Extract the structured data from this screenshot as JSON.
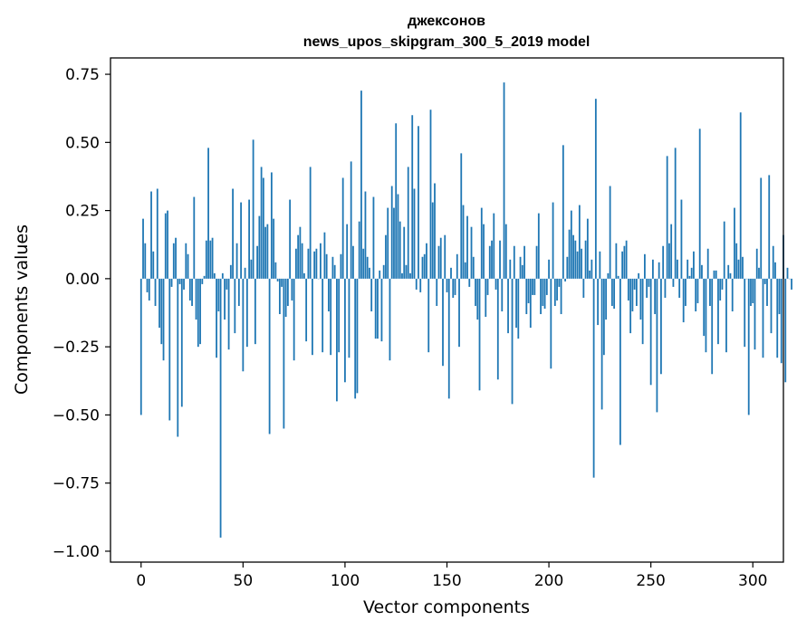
{
  "chart_data": {
    "type": "bar",
    "title_line1": "джексонов",
    "title_line2": "news_upos_skipgram_300_5_2019 model",
    "xlabel": "Vector components",
    "ylabel": "Components values",
    "xlim": [
      -15,
      315
    ],
    "ylim": [
      -1.04,
      0.81
    ],
    "x_ticks": [
      0,
      50,
      100,
      150,
      200,
      250,
      300
    ],
    "y_ticks": [
      -1.0,
      -0.75,
      -0.5,
      -0.25,
      0.0,
      0.25,
      0.5,
      0.75
    ],
    "y_tick_labels": [
      "−1.00",
      "−0.75",
      "−0.50",
      "−0.25",
      "0.00",
      "0.25",
      "0.50",
      "0.75"
    ],
    "bar_color": "#1f77b4",
    "grid": false,
    "values": [
      -0.5,
      0.22,
      0.13,
      -0.05,
      -0.08,
      0.32,
      0.1,
      -0.1,
      0.33,
      -0.18,
      -0.24,
      -0.3,
      0.24,
      0.25,
      -0.52,
      -0.03,
      0.13,
      0.15,
      -0.58,
      -0.02,
      -0.47,
      -0.04,
      0.13,
      0.09,
      -0.08,
      -0.1,
      0.3,
      -0.15,
      -0.25,
      -0.24,
      -0.02,
      0.01,
      0.14,
      0.48,
      0.14,
      0.15,
      0.02,
      -0.29,
      -0.12,
      -0.95,
      0.02,
      -0.15,
      -0.04,
      -0.26,
      0.05,
      0.33,
      -0.2,
      0.13,
      -0.1,
      0.28,
      -0.34,
      0.04,
      -0.25,
      0.29,
      0.07,
      0.51,
      -0.24,
      0.12,
      0.23,
      0.41,
      0.37,
      0.19,
      0.2,
      -0.57,
      0.39,
      0.22,
      0.06,
      -0.01,
      -0.13,
      -0.03,
      -0.55,
      -0.14,
      -0.1,
      0.29,
      -0.08,
      -0.3,
      0.11,
      0.16,
      0.19,
      0.13,
      0.02,
      -0.23,
      0.11,
      0.41,
      -0.28,
      0.1,
      0.11,
      0.0,
      0.13,
      -0.27,
      0.17,
      0.09,
      -0.12,
      -0.28,
      0.08,
      0.05,
      -0.45,
      -0.27,
      0.09,
      0.37,
      -0.38,
      0.2,
      -0.29,
      0.43,
      0.12,
      -0.44,
      -0.42,
      0.21,
      0.69,
      0.11,
      0.32,
      0.08,
      0.04,
      -0.12,
      0.3,
      -0.22,
      -0.22,
      0.03,
      -0.23,
      0.05,
      0.16,
      0.26,
      -0.3,
      0.34,
      0.26,
      0.57,
      0.31,
      0.21,
      0.02,
      0.19,
      0.05,
      0.41,
      0.02,
      0.6,
      0.33,
      -0.04,
      0.56,
      -0.05,
      0.08,
      0.09,
      0.13,
      -0.27,
      0.62,
      0.28,
      0.35,
      -0.1,
      0.12,
      0.15,
      -0.32,
      0.16,
      -0.05,
      -0.44,
      0.04,
      -0.07,
      -0.06,
      0.09,
      -0.25,
      0.46,
      0.27,
      0.06,
      0.23,
      -0.03,
      0.19,
      0.08,
      -0.1,
      -0.15,
      -0.41,
      0.26,
      0.2,
      -0.14,
      -0.06,
      0.12,
      0.14,
      0.24,
      -0.04,
      -0.37,
      0.14,
      -0.12,
      0.72,
      0.2,
      -0.2,
      0.07,
      -0.46,
      0.12,
      -0.18,
      -0.22,
      0.08,
      0.05,
      0.12,
      -0.13,
      -0.09,
      -0.18,
      -0.06,
      -0.06,
      0.12,
      0.24,
      -0.13,
      -0.1,
      -0.11,
      -0.06,
      0.07,
      -0.33,
      0.28,
      -0.1,
      -0.08,
      -0.03,
      -0.13,
      0.49,
      -0.01,
      0.08,
      0.18,
      0.25,
      0.16,
      0.14,
      0.1,
      0.27,
      0.11,
      -0.07,
      0.14,
      0.22,
      0.03,
      0.07,
      -0.73,
      0.66,
      -0.17,
      0.1,
      -0.48,
      -0.28,
      -0.15,
      0.02,
      0.34,
      -0.1,
      -0.11,
      0.13,
      0.01,
      -0.61,
      0.1,
      0.12,
      0.14,
      -0.08,
      -0.2,
      -0.12,
      -0.04,
      -0.1,
      0.02,
      -0.15,
      -0.24,
      0.09,
      -0.07,
      -0.03,
      -0.39,
      0.07,
      -0.13,
      -0.49,
      0.06,
      -0.35,
      0.12,
      -0.07,
      0.45,
      0.13,
      0.2,
      -0.03,
      0.48,
      0.07,
      -0.07,
      0.29,
      -0.16,
      -0.1,
      0.07,
      0.01,
      0.04,
      0.1,
      -0.12,
      -0.09,
      0.55,
      0.05,
      -0.21,
      -0.27,
      0.11,
      -0.1,
      -0.35,
      0.03,
      0.03,
      -0.24,
      -0.08,
      -0.04,
      0.21,
      -0.27,
      0.05,
      0.02,
      -0.12,
      0.26,
      0.13,
      0.07,
      0.61,
      0.08,
      -0.25,
      0.0,
      -0.5,
      -0.1,
      -0.09,
      -0.26,
      0.11,
      0.04,
      0.37,
      -0.29,
      -0.02,
      -0.1,
      0.38,
      -0.2,
      0.12,
      0.06,
      -0.29,
      -0.13,
      -0.31,
      0.16,
      -0.38,
      0.04,
      0.0,
      -0.04
    ]
  }
}
